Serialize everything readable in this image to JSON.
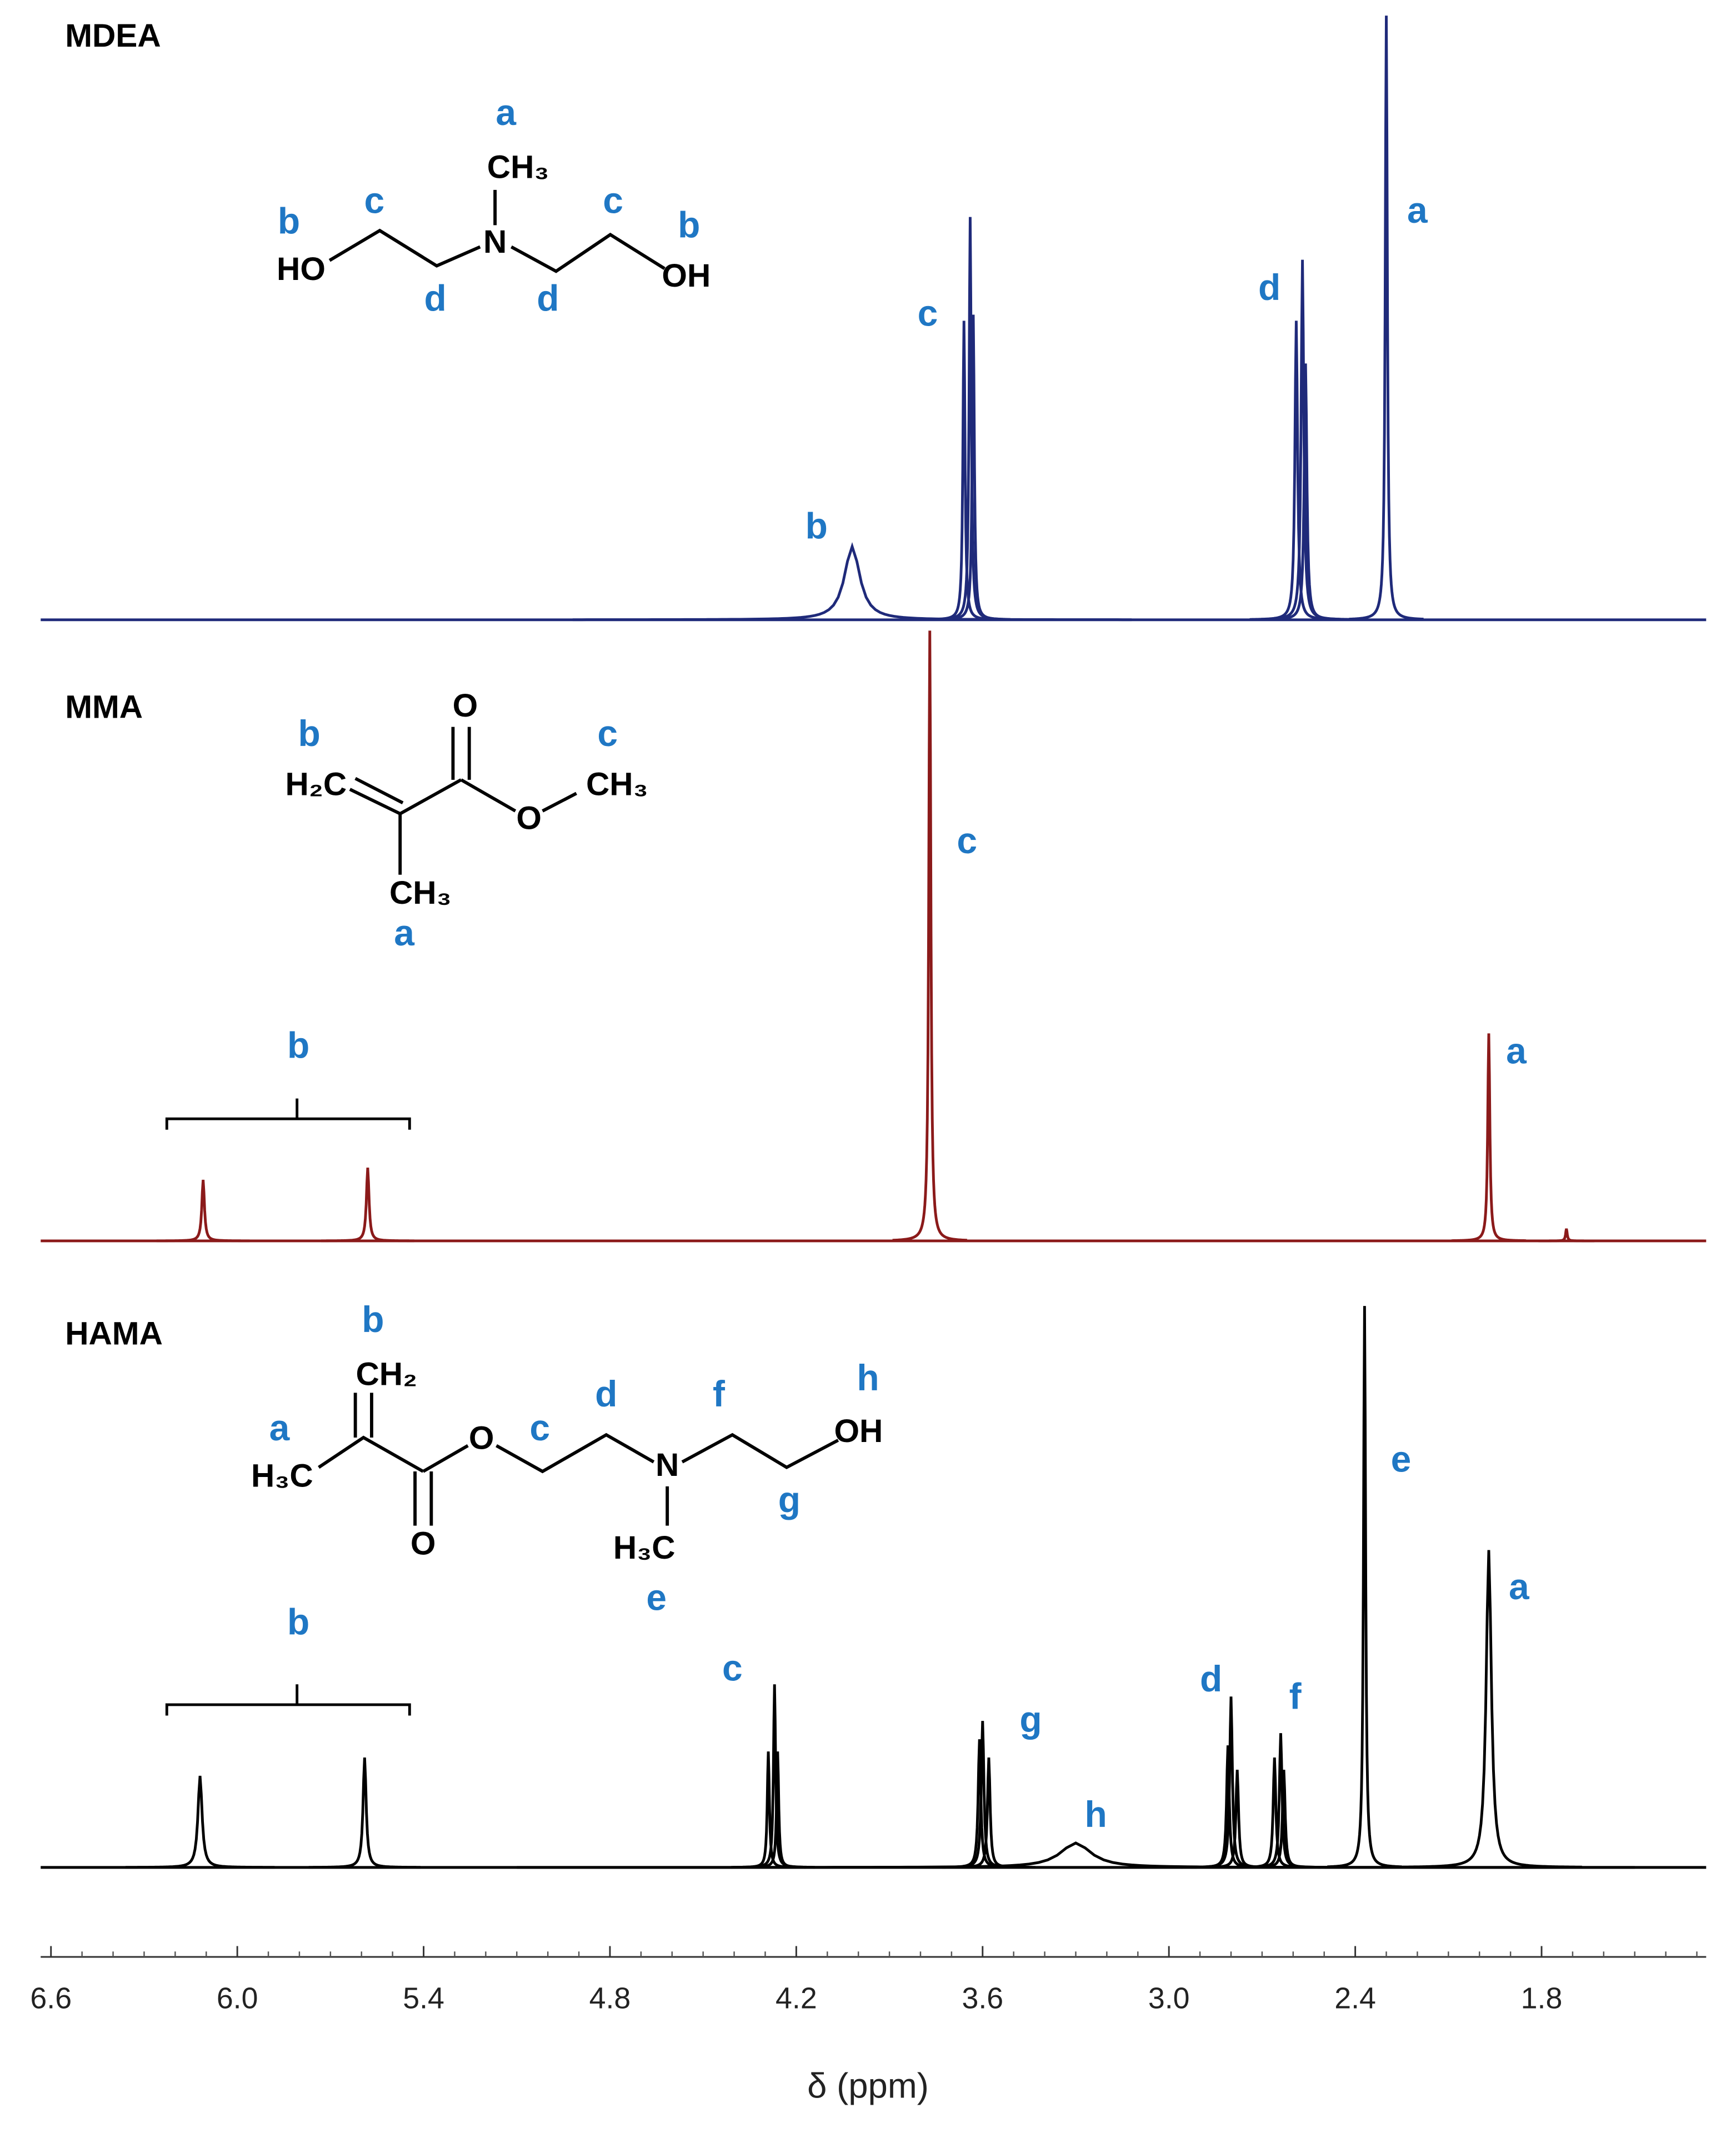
{
  "chart_data": {
    "type": "spectrum",
    "x_label": "δ (ppm)",
    "xlim": [
      6.62,
      1.27
    ],
    "xticks": [
      6.6,
      {
        "value": 6,
        "label": "6.0"
      },
      5.4,
      4.8,
      4.2,
      3.6,
      {
        "value": 3,
        "label": "3.0"
      },
      2.4,
      1.8
    ],
    "ylim": [
      0,
      100
    ],
    "series": [
      {
        "name": "MDEA",
        "color": "#1f2a7a",
        "x": [
          4.02,
          3.66,
          3.64,
          3.63,
          2.59,
          2.57,
          2.56,
          2.3
        ],
        "values": [
          12,
          49,
          66,
          50,
          49,
          59,
          42,
          99
        ],
        "linewidths": [
          0.03,
          0.004,
          0.004,
          0.004,
          0.005,
          0.005,
          0.005,
          0.004
        ],
        "peak_labels": [
          "b",
          "c",
          "d",
          "a"
        ],
        "structure": {
          "atoms": [
            "CH₃",
            "N",
            "HO",
            "OH"
          ],
          "labels": [
            "a",
            "b",
            "c",
            "c",
            "b",
            "d",
            "d"
          ]
        }
      },
      {
        "name": "MMA",
        "color": "#8b1a1a",
        "x": [
          6.11,
          5.58,
          3.77,
          1.97,
          1.72
        ],
        "values": [
          10,
          12,
          100,
          34,
          2
        ],
        "linewidths": [
          0.005,
          0.005,
          0.004,
          0.004,
          0.003
        ],
        "peak_labels": [
          "b",
          "c",
          "a"
        ],
        "structure": {
          "atoms": [
            "O",
            "H₂C",
            "O",
            "CH₃",
            "CH₃"
          ],
          "labels": [
            "b",
            "c",
            "a"
          ]
        }
      },
      {
        "name": "HAMA",
        "color": "#000000",
        "x": [
          6.12,
          5.59,
          4.29,
          4.27,
          4.26,
          3.61,
          3.6,
          3.58,
          3.3,
          2.81,
          2.8,
          2.78,
          2.66,
          2.64,
          2.63,
          2.37,
          1.97
        ],
        "values": [
          15,
          18,
          19,
          30,
          19,
          21,
          24,
          18,
          4,
          20,
          28,
          16,
          18,
          22,
          16,
          92,
          52
        ],
        "linewidths": [
          0.008,
          0.006,
          0.004,
          0.004,
          0.004,
          0.005,
          0.005,
          0.005,
          0.06,
          0.005,
          0.005,
          0.005,
          0.005,
          0.005,
          0.005,
          0.004,
          0.01
        ],
        "peak_labels": [
          "b",
          "c",
          "g",
          "h",
          "d",
          "f",
          "e",
          "a"
        ],
        "structure": {
          "atoms": [
            "CH₂",
            "H₃C",
            "O",
            "O",
            "N",
            "OH",
            "H₃C"
          ],
          "labels": [
            "b",
            "a",
            "c",
            "d",
            "f",
            "h",
            "g",
            "e"
          ]
        }
      }
    ]
  }
}
